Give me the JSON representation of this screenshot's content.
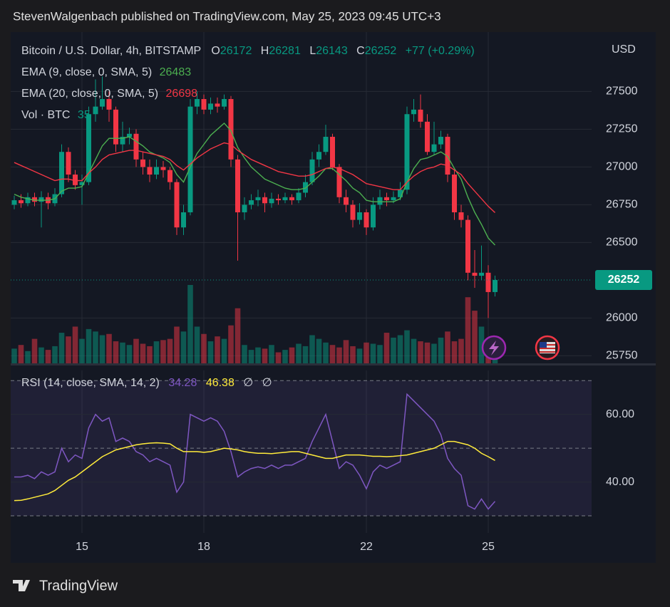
{
  "chart_data": {
    "type": "candlestick",
    "publisher_line": "StevenWalgenbach published on TradingView.com, May 25, 2023 09:45 UTC+3",
    "title": "Bitcoin / U.S. Dollar, 4h, BITSTAMP",
    "labels": {
      "open": "O",
      "high": "H",
      "low": "L",
      "close": "C"
    },
    "change_label": "+77 (+0.29%)",
    "currency": "USD",
    "up_color": "#089981",
    "down_color": "#f23645",
    "open": [
      26750,
      26780,
      26760,
      26800,
      26770,
      26800,
      26760,
      26820,
      27100,
      26950,
      26880,
      26900,
      27350,
      27400,
      27450,
      27380,
      27150,
      27200,
      27220,
      27050,
      27000,
      26950,
      27000,
      26980,
      26900,
      26600,
      26700,
      27400,
      27450,
      27380,
      27420,
      27400,
      27450,
      27050,
      26700,
      26750,
      26780,
      26800,
      26760,
      26790,
      26780,
      26800,
      26780,
      26830,
      26900,
      27050,
      27100,
      27200,
      27000,
      26800,
      26750,
      26650,
      26700,
      26600,
      26750,
      26800,
      26780,
      26800,
      26850,
      27350,
      27380,
      27300,
      27100,
      27150,
      27200,
      26950,
      26700,
      26650,
      26300,
      26280,
      26300,
      26172
    ],
    "high": [
      26810,
      26820,
      26830,
      26830,
      26840,
      26830,
      26860,
      27150,
      27130,
      26980,
      26950,
      27400,
      27580,
      27600,
      27500,
      27400,
      27300,
      27260,
      27250,
      27100,
      27050,
      27050,
      27040,
      27000,
      26920,
      26750,
      27450,
      27500,
      27480,
      27460,
      27460,
      27480,
      27470,
      27080,
      26800,
      26820,
      26850,
      26830,
      26830,
      26820,
      26830,
      26820,
      26860,
      26950,
      27100,
      27150,
      27280,
      27220,
      27020,
      26850,
      26780,
      26760,
      26720,
      26800,
      26850,
      26830,
      26840,
      26900,
      27400,
      27450,
      27480,
      27350,
      27300,
      27240,
      27220,
      26980,
      26750,
      26680,
      26450,
      26480,
      26350,
      26281
    ],
    "low": [
      26720,
      26730,
      26740,
      26740,
      26600,
      26720,
      26740,
      26800,
      26900,
      26850,
      26750,
      26880,
      27300,
      27380,
      27300,
      27100,
      27100,
      27150,
      27000,
      26950,
      26900,
      26920,
      26930,
      26850,
      26550,
      26550,
      26680,
      27350,
      27350,
      27350,
      27360,
      27380,
      27000,
      26380,
      26650,
      26720,
      26740,
      26700,
      26730,
      26750,
      26760,
      26750,
      26760,
      26800,
      26880,
      27000,
      27080,
      26980,
      26760,
      26700,
      26600,
      26620,
      26550,
      26580,
      26720,
      26740,
      26760,
      26780,
      26820,
      27300,
      27260,
      27080,
      27080,
      27120,
      26900,
      26650,
      26600,
      26250,
      26200,
      26250,
      26000,
      26143
    ],
    "close": [
      26780,
      26760,
      26800,
      26770,
      26800,
      26760,
      26820,
      27100,
      26950,
      26880,
      26900,
      27350,
      27400,
      27450,
      27380,
      27150,
      27200,
      27220,
      27050,
      27000,
      26950,
      27000,
      26980,
      26900,
      26600,
      26700,
      27400,
      27450,
      27380,
      27420,
      27400,
      27450,
      27050,
      26700,
      26750,
      26780,
      26800,
      26760,
      26790,
      26780,
      26800,
      26780,
      26830,
      26900,
      27050,
      27100,
      27200,
      27000,
      26800,
      26750,
      26650,
      26700,
      26600,
      26750,
      26800,
      26780,
      26800,
      26850,
      27350,
      27380,
      27300,
      27100,
      27150,
      27200,
      26950,
      26700,
      26650,
      26300,
      26280,
      26300,
      26172,
      26252
    ],
    "volume_label": "Vol · BTC",
    "volume": [
      120,
      150,
      100,
      200,
      130,
      110,
      140,
      250,
      220,
      300,
      200,
      280,
      260,
      230,
      240,
      180,
      170,
      150,
      200,
      160,
      140,
      180,
      190,
      200,
      300,
      260,
      640,
      300,
      240,
      180,
      220,
      200,
      310,
      450,
      150,
      110,
      130,
      120,
      150,
      90,
      110,
      130,
      160,
      140,
      230,
      200,
      170,
      150,
      130,
      190,
      140,
      120,
      170,
      160,
      150,
      250,
      210,
      230,
      270,
      200,
      180,
      170,
      160,
      210,
      260,
      180,
      200,
      540,
      430,
      300,
      180,
      35
    ],
    "series": [
      {
        "name": "EMA (9, close, 0, SMA, 5)",
        "color": "#4caf50",
        "values": [
          26820,
          26800,
          26790,
          26780,
          26780,
          26780,
          26790,
          26840,
          26860,
          26860,
          26870,
          26960,
          27050,
          27140,
          27190,
          27190,
          27190,
          27200,
          27170,
          27140,
          27100,
          27080,
          27060,
          27030,
          26950,
          26900,
          27000,
          27090,
          27150,
          27210,
          27250,
          27290,
          27240,
          27130,
          27060,
          27000,
          26960,
          26920,
          26900,
          26880,
          26860,
          26850,
          26850,
          26860,
          26900,
          26940,
          26990,
          26990,
          26950,
          26910,
          26860,
          26830,
          26780,
          26770,
          26770,
          26770,
          26770,
          26790,
          26900,
          26990,
          27050,
          27060,
          27080,
          27100,
          27070,
          26990,
          26920,
          26800,
          26700,
          26620,
          26530,
          26483
        ]
      },
      {
        "name": "EMA (20, close, 0, SMA, 5)",
        "color": "#f23645",
        "values": [
          27030,
          27010,
          26990,
          26970,
          26950,
          26930,
          26910,
          26920,
          26920,
          26910,
          26910,
          26960,
          27000,
          27050,
          27080,
          27090,
          27100,
          27110,
          27110,
          27100,
          27090,
          27080,
          27070,
          27050,
          27010,
          26980,
          27020,
          27060,
          27090,
          27120,
          27140,
          27160,
          27150,
          27110,
          27080,
          27050,
          27030,
          27010,
          26990,
          26970,
          26960,
          26950,
          26940,
          26940,
          26950,
          26970,
          26990,
          27000,
          26990,
          26970,
          26950,
          26920,
          26890,
          26880,
          26870,
          26860,
          26850,
          26850,
          26900,
          26940,
          26970,
          26990,
          27000,
          27020,
          27010,
          26980,
          26950,
          26890,
          26840,
          26790,
          26740,
          26698
        ]
      }
    ],
    "ylim": [
      25700,
      27870
    ],
    "yticks": [
      25750,
      26000,
      26500,
      26750,
      27000,
      27250,
      27500
    ],
    "xticks": [
      {
        "value": 10,
        "label": "15"
      },
      {
        "value": 28,
        "label": "18"
      },
      {
        "value": 52,
        "label": "22"
      },
      {
        "value": 70,
        "label": "25"
      }
    ],
    "grid": true,
    "rsi": {
      "name": "RSI (14, close, SMA, 14, 2)",
      "color": "#7e57c2",
      "values": [
        41.5,
        41.5,
        42,
        41,
        43,
        42,
        43,
        50,
        46,
        48,
        47,
        56,
        60,
        58,
        59,
        52,
        53,
        52,
        49,
        48,
        46,
        47,
        46,
        45,
        37,
        40,
        60,
        59,
        58,
        59,
        58,
        55,
        49,
        41.5,
        43,
        44,
        44.5,
        44,
        45,
        44,
        45,
        45,
        46,
        47,
        52,
        56,
        60,
        52,
        44,
        46,
        45,
        42,
        38,
        43,
        45,
        44,
        45,
        46,
        66,
        64,
        62,
        60,
        58,
        54,
        47,
        44,
        42,
        33,
        32,
        35,
        32,
        34.28
      ],
      "ma_color": "#ffeb3b",
      "ma_values": [
        34.5,
        34.6,
        35,
        35.5,
        36,
        36.5,
        37.5,
        39,
        40.5,
        41.5,
        43,
        44.5,
        46,
        47.5,
        48.5,
        49.5,
        50,
        50.5,
        51,
        51.3,
        51.5,
        51.6,
        51.5,
        51.3,
        50,
        49,
        49,
        49,
        48.8,
        49,
        49.5,
        50,
        49.8,
        49.5,
        49,
        48.7,
        48.5,
        48.5,
        48.4,
        48.6,
        48.8,
        49,
        49,
        48.5,
        48,
        47.5,
        47,
        47,
        47.5,
        48,
        48,
        48,
        47.8,
        47.6,
        47.6,
        47.5,
        47.6,
        47.8,
        48,
        48.5,
        49,
        49.5,
        50,
        51,
        52,
        52,
        51.5,
        51,
        50,
        48.5,
        47.5,
        46.38
      ],
      "extra_labels": [
        "∅",
        "∅"
      ],
      "ylim": [
        26,
        73
      ],
      "yticks": [
        {
          "value": 60,
          "label": "60.00"
        },
        {
          "value": 40,
          "label": "40.00"
        }
      ],
      "levels": [
        30,
        50,
        70
      ]
    },
    "brand": "TradingView"
  }
}
